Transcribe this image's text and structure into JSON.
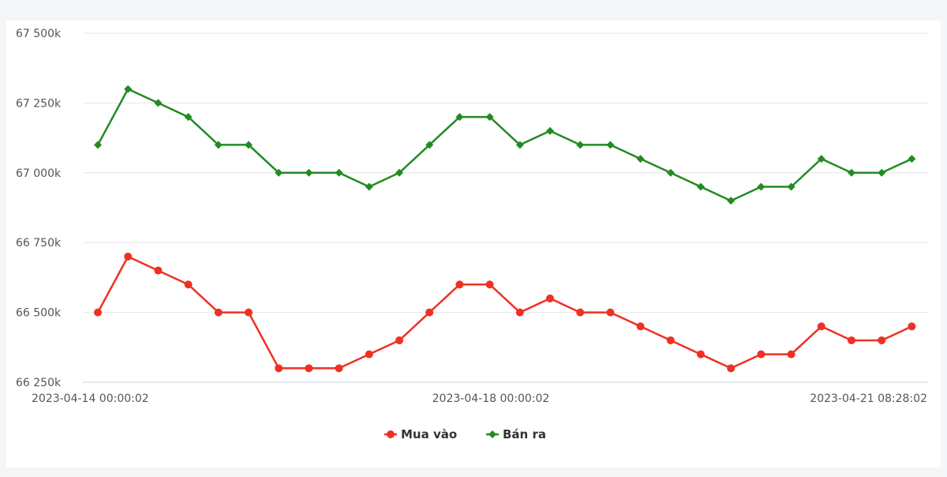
{
  "chart_data": {
    "type": "line",
    "title": "",
    "xlabel": "",
    "ylabel": "",
    "x_tick_labels": [
      "2023-04-14 00:00:02",
      "2023-04-18 00:00:02",
      "2023-04-21 08:28:02"
    ],
    "y_tick_labels": [
      "67 500k",
      "67 250k",
      "67 000k",
      "66 750k",
      "66 500k",
      "66 250k"
    ],
    "y_ticks": [
      67500,
      67250,
      67000,
      66750,
      66500,
      66250
    ],
    "ylim": [
      66250,
      67500
    ],
    "grid": true,
    "legend_position": "bottom-center",
    "series": [
      {
        "name": "Mua vào",
        "color": "#ee3124",
        "marker": "circle",
        "values": [
          66500,
          66700,
          66650,
          66600,
          66500,
          66500,
          66300,
          66300,
          66300,
          66350,
          66400,
          66500,
          66600,
          66600,
          66500,
          66550,
          66500,
          66500,
          66450,
          66400,
          66350,
          66300,
          66350,
          66350,
          66450,
          66400,
          66400,
          66450
        ]
      },
      {
        "name": "Bán ra",
        "color": "#228b22",
        "marker": "diamond",
        "values": [
          67100,
          67300,
          67250,
          67200,
          67100,
          67100,
          67000,
          67000,
          67000,
          66950,
          67000,
          67100,
          67200,
          67200,
          67100,
          67150,
          67100,
          67100,
          67050,
          67000,
          66950,
          66900,
          66950,
          66950,
          67050,
          67000,
          67000,
          67050
        ]
      }
    ]
  }
}
